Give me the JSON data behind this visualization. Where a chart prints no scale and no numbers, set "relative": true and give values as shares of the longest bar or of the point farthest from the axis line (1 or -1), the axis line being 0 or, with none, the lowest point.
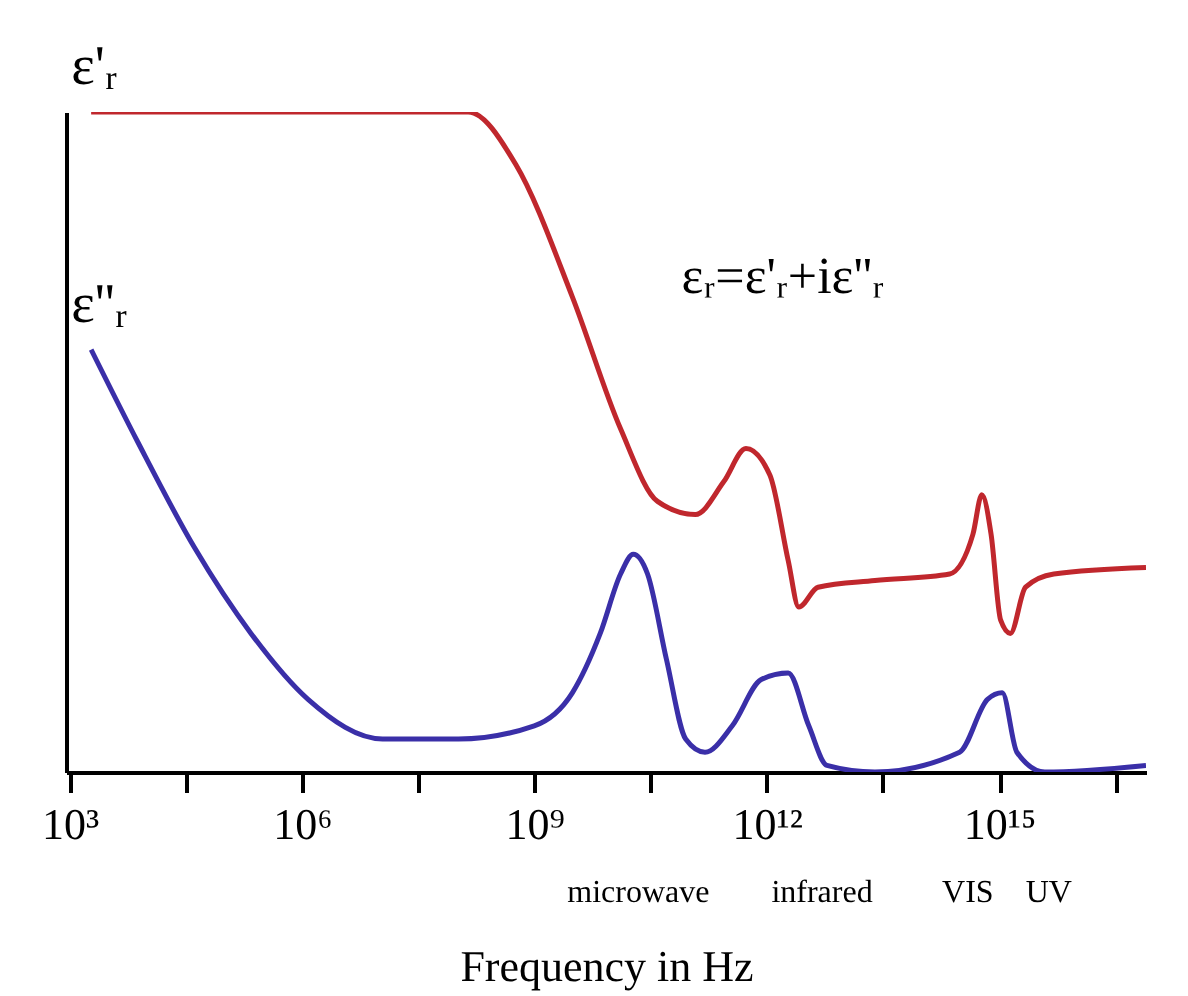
{
  "chart_data": {
    "type": "line",
    "relative": true,
    "xlabel": "Frequency in Hz",
    "log": "x",
    "grid": false,
    "legend": false,
    "marker": "none",
    "line_style": "solid",
    "tick_labels": "x",
    "xlim": [
      900,
      7.9e+16
    ],
    "xticks": [
      {
        "value": 1000,
        "label": "10³"
      },
      {
        "value": 31623,
        "label": null
      },
      {
        "value": 1000000,
        "label": "10⁶"
      },
      {
        "value": 31622777,
        "label": null
      },
      {
        "value": 1000000000,
        "label": "10⁹"
      },
      {
        "value": 31622776602,
        "label": null
      },
      {
        "value": 1000000000000,
        "label": "10¹²"
      },
      {
        "value": 31622776601684,
        "label": null
      },
      {
        "value": 1000000000000000,
        "label": "10¹⁵"
      },
      {
        "value": 31622776601683792,
        "label": null
      }
    ],
    "series": [
      {
        "name": "ε'ᵣ",
        "color": "#c0272d",
        "x": [
          1900.0,
          140000000.0,
          580000000.0,
          3100000000.0,
          13000000000.0,
          39000000000.0,
          120000000000.0,
          280000000000.0,
          540000000000.0,
          1100000000000.0,
          1900000000000.0,
          2600000000000.0,
          4600000000000.0,
          25000000000000.0,
          230000000000000.0,
          460000000000000.0,
          600000000000000.0,
          790000000000000.0,
          1050000000000000.0,
          1400000000000000.0,
          2200000000000000.0,
          5100000000000000.0,
          7.9e+16
        ],
        "values": [
          1.0,
          1.0,
          0.92,
          0.72,
          0.52,
          0.41,
          0.39,
          0.44,
          0.49,
          0.45,
          0.32,
          0.25,
          0.28,
          0.29,
          0.3,
          0.36,
          0.42,
          0.36,
          0.23,
          0.21,
          0.28,
          0.3,
          0.31
        ]
      },
      {
        "name": "ε''ᵣ",
        "color": "#3a2fa8",
        "x": [
          1900.0,
          7600.0,
          41000.0,
          220000.0,
          1200000.0,
          11000000.0,
          105000000.0,
          1000000000.0,
          3100000000.0,
          7100000000.0,
          13000000000.0,
          19000000000.0,
          29000000000.0,
          51000000000.0,
          90000000000.0,
          160000000000.0,
          360000000000.0,
          850000000000.0,
          1900000000000.0,
          3500000000000.0,
          6000000000000.0,
          25000000000000.0,
          310000000000000.0,
          710000000000000.0,
          1100000000000000.0,
          1700000000000000.0,
          3900000000000000.0,
          7.9e+16
        ],
        "values": [
          0.64,
          0.5,
          0.34,
          0.21,
          0.11,
          0.05,
          0.05,
          0.07,
          0.12,
          0.21,
          0.3,
          0.33,
          0.3,
          0.17,
          0.05,
          0.03,
          0.07,
          0.14,
          0.15,
          0.07,
          0.01,
          0.0,
          0.03,
          0.11,
          0.12,
          0.03,
          0.0,
          0.01
        ]
      }
    ],
    "annotations": [
      "εᵣ=ε'ᵣ+iε''ᵣ",
      "microwave",
      "infrared",
      "VIS",
      "UV"
    ]
  }
}
